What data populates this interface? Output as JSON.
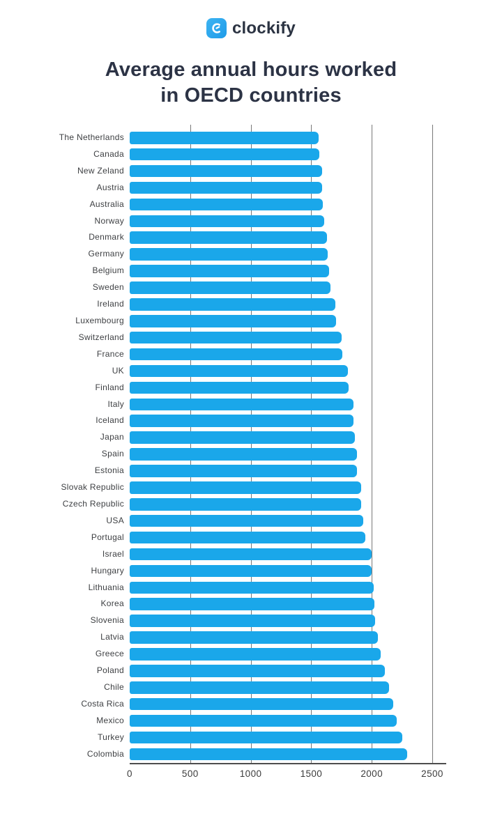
{
  "brand": {
    "name": "clockify",
    "icon": "clockify-clock-icon",
    "icon_color_top": "#3db4f2",
    "icon_color_bottom": "#1e9be9",
    "wordmark_color": "#2b3342"
  },
  "title": {
    "line1": "Average annual hours worked",
    "line2": "in OECD countries"
  },
  "chart_data": {
    "type": "bar",
    "orientation": "horizontal",
    "title": "Average annual hours worked in OECD countries",
    "categories": [
      "The Netherlands",
      "Canada",
      "New Zeland",
      "Austria",
      "Australia",
      "Norway",
      "Denmark",
      "Germany",
      "Belgium",
      "Sweden",
      "Ireland",
      "Luxembourg",
      "Switzerland",
      "France",
      "UK",
      "Finland",
      "Italy",
      "Iceland",
      "Japan",
      "Spain",
      "Estonia",
      "Slovak Republic",
      "Czech Republic",
      "USA",
      "Portugal",
      "Israel",
      "Hungary",
      "Lithuania",
      "Korea",
      "Slovenia",
      "Latvia",
      "Greece",
      "Poland",
      "Chile",
      "Costa Rica",
      "Mexico",
      "Turkey",
      "Colombia"
    ],
    "values": [
      1560,
      1565,
      1590,
      1590,
      1595,
      1610,
      1630,
      1635,
      1650,
      1660,
      1700,
      1705,
      1750,
      1755,
      1805,
      1810,
      1850,
      1850,
      1860,
      1875,
      1880,
      1910,
      1915,
      1930,
      1945,
      2000,
      2000,
      2015,
      2020,
      2025,
      2050,
      2075,
      2110,
      2140,
      2180,
      2205,
      2250,
      2290
    ],
    "xlabel": "",
    "ylabel": "",
    "x_ticks": [
      0,
      500,
      1000,
      1500,
      2000,
      2500
    ],
    "xlim": [
      0,
      2500
    ],
    "grid": "vertical",
    "legend": "none",
    "bar_color": "#1aa7ea",
    "grid_color": "#787878",
    "axis_color": "#4d4d4d",
    "tick_label_color": "#3c3c3c",
    "category_label_color": "#3d3f42"
  }
}
